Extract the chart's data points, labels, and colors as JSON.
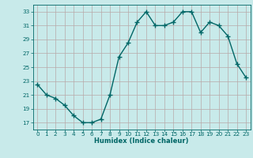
{
  "x": [
    0,
    1,
    2,
    3,
    4,
    5,
    6,
    7,
    8,
    9,
    10,
    11,
    12,
    13,
    14,
    15,
    16,
    17,
    18,
    19,
    20,
    21,
    22,
    23
  ],
  "y": [
    22.5,
    21.0,
    20.5,
    19.5,
    18.0,
    17.0,
    17.0,
    17.5,
    21.0,
    26.5,
    28.5,
    31.5,
    33.0,
    31.0,
    31.0,
    31.5,
    33.0,
    33.0,
    30.0,
    31.5,
    31.0,
    29.5,
    25.5,
    23.5
  ],
  "line_color": "#006666",
  "marker": "+",
  "marker_size": 4,
  "bg_color": "#c8eaea",
  "grid_color": "#b8a8a8",
  "axis_color": "#006666",
  "text_color": "#006666",
  "xlabel": "Humidex (Indice chaleur)",
  "ylim": [
    16,
    34
  ],
  "xlim": [
    -0.5,
    23.5
  ],
  "yticks": [
    17,
    19,
    21,
    23,
    25,
    27,
    29,
    31,
    33
  ],
  "xticks": [
    0,
    1,
    2,
    3,
    4,
    5,
    6,
    7,
    8,
    9,
    10,
    11,
    12,
    13,
    14,
    15,
    16,
    17,
    18,
    19,
    20,
    21,
    22,
    23
  ],
  "xlabel_fontsize": 6.0,
  "tick_fontsize": 5.2,
  "linewidth": 1.0
}
